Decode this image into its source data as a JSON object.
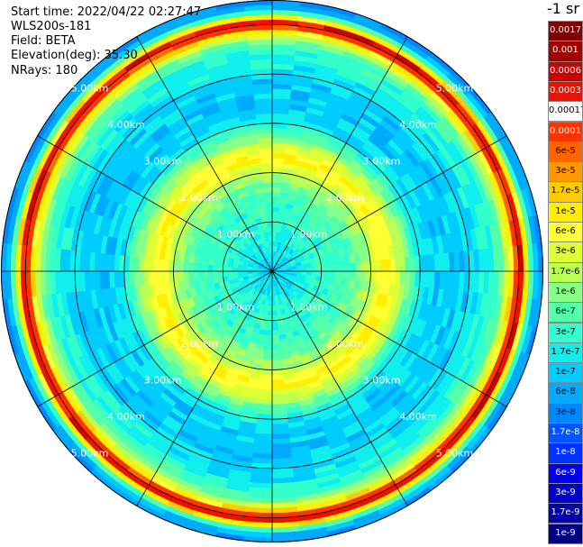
{
  "info": {
    "start_time": "Start time: 2022/04/22 02:27:47",
    "instrument": "WLS200s-181",
    "field": "Field: BETA",
    "elevation": "Elevation(deg): 35.30",
    "nrays": "NRays: 180"
  },
  "colorbar": {
    "unit_label": "-1 sr",
    "entries": [
      {
        "label": "0.0017",
        "color": "#7f0000",
        "text_color": "#ffffff"
      },
      {
        "label": "0.001",
        "color": "#a50000",
        "text_color": "#ffffff"
      },
      {
        "label": "0.0006",
        "color": "#cc0000",
        "text_color": "#ffffff"
      },
      {
        "label": "0.0003",
        "color": "#ee1100",
        "text_color": "#ffffff"
      },
      {
        "label": "0.00017",
        "color": "#ffffff",
        "text_color": "#000000"
      },
      {
        "label": "0.0001",
        "color": "#ff3300",
        "text_color": "#ffffff"
      },
      {
        "label": "6e-5",
        "color": "#ff6600",
        "text_color": "#000000"
      },
      {
        "label": "3e-5",
        "color": "#ff9900",
        "text_color": "#000000"
      },
      {
        "label": "1.7e-5",
        "color": "#ffcc00",
        "text_color": "#000000"
      },
      {
        "label": "1e-5",
        "color": "#ffee00",
        "text_color": "#000000"
      },
      {
        "label": "6e-6",
        "color": "#ffff33",
        "text_color": "#000000"
      },
      {
        "label": "3e-6",
        "color": "#ddff33",
        "text_color": "#000000"
      },
      {
        "label": "1.7e-6",
        "color": "#bbff55",
        "text_color": "#000000"
      },
      {
        "label": "1e-6",
        "color": "#88ff88",
        "text_color": "#000000"
      },
      {
        "label": "6e-7",
        "color": "#55ffaa",
        "text_color": "#000000"
      },
      {
        "label": "3e-7",
        "color": "#33ffcc",
        "text_color": "#000000"
      },
      {
        "label": "1.7e-7",
        "color": "#11eeee",
        "text_color": "#000000"
      },
      {
        "label": "1e-7",
        "color": "#00ccff",
        "text_color": "#000000"
      },
      {
        "label": "6e-8",
        "color": "#00aaff",
        "text_color": "#000000"
      },
      {
        "label": "3e-8",
        "color": "#0088ff",
        "text_color": "#000000"
      },
      {
        "label": "1.7e-8",
        "color": "#0055ff",
        "text_color": "#ffffff"
      },
      {
        "label": "1e-8",
        "color": "#0033ff",
        "text_color": "#ffffff"
      },
      {
        "label": "6e-9",
        "color": "#0000ee",
        "text_color": "#ffffff"
      },
      {
        "label": "3e-9",
        "color": "#0000cc",
        "text_color": "#ffffff"
      },
      {
        "label": "1.7e-9",
        "color": "#0000aa",
        "text_color": "#ffffff"
      },
      {
        "label": "1e-9",
        "color": "#000080",
        "text_color": "#ffffff"
      }
    ]
  },
  "chart_data": {
    "type": "heatmap",
    "projection": "polar",
    "field": "BETA",
    "elevation_deg": 35.3,
    "nrays": 180,
    "range_rings_km": [
      1,
      2,
      3,
      4,
      5
    ],
    "ring_labels": [
      "1.00km",
      "2.00km",
      "3.00km",
      "4.00km",
      "5.00km"
    ],
    "spoke_angles_deg": [
      0,
      30,
      60,
      90,
      120,
      150,
      180,
      210,
      240,
      270,
      300,
      330
    ],
    "max_range_km": 5.5,
    "radial_profile": {
      "range_km": [
        0.0,
        0.5,
        1.0,
        1.3,
        1.6,
        1.8,
        2.0,
        2.3,
        2.6,
        2.8,
        3.0,
        3.3,
        3.6,
        3.9,
        4.2,
        4.5,
        4.7,
        4.85,
        4.95,
        5.05,
        5.15,
        5.3,
        5.5
      ],
      "color_index": [
        17,
        16,
        15,
        15,
        14,
        13,
        12,
        9,
        12,
        14,
        16,
        17,
        17,
        17,
        16,
        15,
        13,
        9,
        5,
        3,
        9,
        17,
        19
      ]
    },
    "grid": true,
    "legend": "right"
  }
}
